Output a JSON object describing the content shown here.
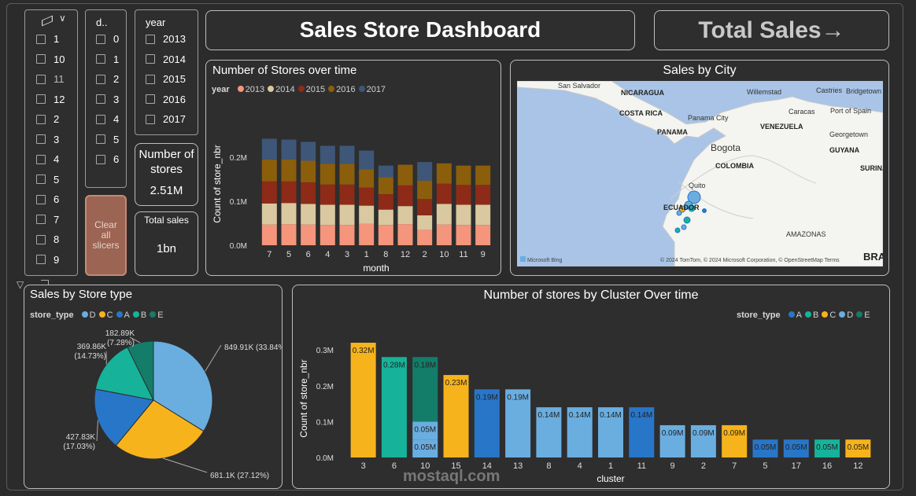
{
  "slicer_store": {
    "items": [
      "1",
      "10",
      "11",
      "12",
      "2",
      "3",
      "4",
      "5",
      "6",
      "7",
      "8",
      "9"
    ]
  },
  "slicer_d": {
    "header": "d..",
    "items": [
      "0",
      "1",
      "2",
      "3",
      "4",
      "5",
      "6"
    ]
  },
  "slicer_year": {
    "header": "year",
    "items": [
      "2013",
      "2014",
      "2015",
      "2016",
      "2017"
    ]
  },
  "card_stores": {
    "label": "Number of stores",
    "value": "2.51M"
  },
  "card_sales": {
    "label": "Total sales",
    "value": "1bn"
  },
  "clear_button": {
    "label": "Clear all slicers"
  },
  "header": {
    "title": "Sales Store Dashboard",
    "nav": "Total Sales→"
  },
  "map": {
    "title": "Sales by City",
    "labels": [
      "San Salvador",
      "NICARAGUA",
      "COSTA RICA",
      "Panama City",
      "PANAMA",
      "Willemstad",
      "Castries",
      "Bridgetown",
      "Caracas",
      "Port of Spain",
      "VENEZUELA",
      "Georgetown",
      "GUYANA",
      "SURINAM",
      "Bogota",
      "COLOMBIA",
      "Quito",
      "ECUADOR",
      "AMAZONAS",
      "BRA"
    ],
    "attribution": "© 2024 TomTom, © 2024 Microsoft Corporation, © OpenStreetMap  Terms",
    "brand": "Microsoft Bing"
  },
  "watermark": "mostaql.com",
  "colors": {
    "y2013": "#f4957c",
    "y2014": "#d9c8a0",
    "y2015": "#8e2a18",
    "y2016": "#8b5e0c",
    "y2017": "#3e5778",
    "D": "#6aaee0",
    "C": "#f7b31b",
    "A": "#2876c8",
    "B": "#16b39a",
    "E": "#137d69"
  },
  "chart_data": [
    {
      "type": "bar",
      "stacked": true,
      "title": "Number of Stores over time",
      "legend_title": "year",
      "xlabel": "month",
      "ylabel": "Count of store_nbr",
      "ylim": [
        0,
        0.25
      ],
      "yticks": [
        "0.0M",
        "0.1M",
        "0.2M"
      ],
      "categories": [
        "7",
        "5",
        "6",
        "4",
        "3",
        "1",
        "8",
        "12",
        "2",
        "10",
        "11",
        "9"
      ],
      "series": [
        {
          "name": "2013",
          "values": [
            0.047,
            0.048,
            0.047,
            0.046,
            0.046,
            0.049,
            0.046,
            0.048,
            0.035,
            0.047,
            0.046,
            0.046
          ]
        },
        {
          "name": "2014",
          "values": [
            0.048,
            0.048,
            0.047,
            0.046,
            0.046,
            0.041,
            0.035,
            0.041,
            0.033,
            0.047,
            0.046,
            0.046
          ]
        },
        {
          "name": "2015",
          "values": [
            0.05,
            0.049,
            0.049,
            0.046,
            0.046,
            0.041,
            0.035,
            0.047,
            0.037,
            0.046,
            0.045,
            0.045
          ]
        },
        {
          "name": "2016",
          "values": [
            0.05,
            0.05,
            0.049,
            0.047,
            0.047,
            0.042,
            0.039,
            0.047,
            0.042,
            0.046,
            0.044,
            0.044
          ]
        },
        {
          "name": "2017",
          "values": [
            0.047,
            0.045,
            0.043,
            0.041,
            0.041,
            0.042,
            0.026,
            0.0,
            0.042,
            0.0,
            0.0,
            0.0
          ]
        }
      ]
    },
    {
      "type": "pie",
      "title": "Sales by Store type",
      "legend_title": "store_type",
      "categories": [
        "D",
        "C",
        "A",
        "B",
        "E"
      ],
      "values": [
        849.91,
        681.1,
        427.83,
        369.86,
        182.89
      ],
      "labels": [
        "849.91K (33.84%)",
        "681.1K (27.12%)",
        "427.83K (17.03%)",
        "369.86K (14.73%)",
        "182.89K (7.28%)"
      ]
    },
    {
      "type": "bar",
      "title": "Number of stores by Cluster Over time",
      "legend_title": "store_type",
      "legend": [
        "A",
        "B",
        "C",
        "D",
        "E"
      ],
      "xlabel": "cluster",
      "ylabel": "Count of store_nbr",
      "ylim": [
        0,
        0.32
      ],
      "yticks": [
        "0.0M",
        "0.1M",
        "0.2M",
        "0.3M"
      ],
      "categories": [
        "3",
        "6",
        "10",
        "15",
        "14",
        "13",
        "8",
        "4",
        "1",
        "11",
        "9",
        "2",
        "7",
        "5",
        "17",
        "16",
        "12"
      ],
      "bars": [
        {
          "cluster": "3",
          "segments": [
            {
              "type": "C",
              "value": 0.32,
              "label": "0.32M"
            }
          ]
        },
        {
          "cluster": "6",
          "segments": [
            {
              "type": "B",
              "value": 0.28,
              "label": "0.28M"
            }
          ]
        },
        {
          "cluster": "10",
          "segments": [
            {
              "type": "D",
              "value": 0.05,
              "label": "0.05M"
            },
            {
              "type": "D",
              "value": 0.05,
              "label": "0.05M"
            },
            {
              "type": "E",
              "value": 0.18,
              "label": "0.18M"
            }
          ]
        },
        {
          "cluster": "15",
          "segments": [
            {
              "type": "C",
              "value": 0.23,
              "label": "0.23M"
            }
          ]
        },
        {
          "cluster": "14",
          "segments": [
            {
              "type": "A",
              "value": 0.19,
              "label": "0.19M"
            }
          ]
        },
        {
          "cluster": "13",
          "segments": [
            {
              "type": "D",
              "value": 0.19,
              "label": "0.19M"
            }
          ]
        },
        {
          "cluster": "8",
          "segments": [
            {
              "type": "D",
              "value": 0.14,
              "label": "0.14M"
            }
          ]
        },
        {
          "cluster": "4",
          "segments": [
            {
              "type": "D",
              "value": 0.14,
              "label": "0.14M"
            }
          ]
        },
        {
          "cluster": "1",
          "segments": [
            {
              "type": "D",
              "value": 0.14,
              "label": "0.14M"
            }
          ]
        },
        {
          "cluster": "11",
          "segments": [
            {
              "type": "A",
              "value": 0.14,
              "label": "0.14M"
            }
          ]
        },
        {
          "cluster": "9",
          "segments": [
            {
              "type": "D",
              "value": 0.09,
              "label": "0.09M"
            }
          ]
        },
        {
          "cluster": "2",
          "segments": [
            {
              "type": "D",
              "value": 0.09,
              "label": "0.09M"
            }
          ]
        },
        {
          "cluster": "7",
          "segments": [
            {
              "type": "C",
              "value": 0.09,
              "label": "0.09M"
            }
          ]
        },
        {
          "cluster": "5",
          "segments": [
            {
              "type": "A",
              "value": 0.05,
              "label": "0.05M"
            }
          ]
        },
        {
          "cluster": "17",
          "segments": [
            {
              "type": "A",
              "value": 0.05,
              "label": "0.05M"
            }
          ]
        },
        {
          "cluster": "16",
          "segments": [
            {
              "type": "B",
              "value": 0.05,
              "label": "0.05M"
            }
          ]
        },
        {
          "cluster": "12",
          "segments": [
            {
              "type": "C",
              "value": 0.05,
              "label": "0.05M"
            }
          ]
        }
      ]
    }
  ]
}
